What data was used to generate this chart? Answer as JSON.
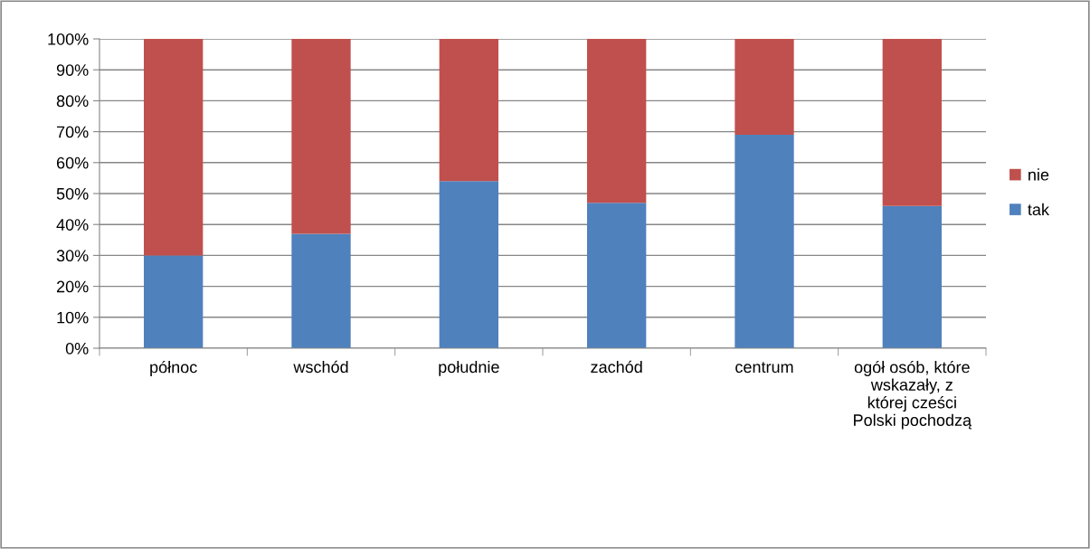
{
  "chart_data": {
    "type": "bar",
    "stacked": true,
    "categories": [
      "północ",
      "wschód",
      "południe",
      "zachód",
      "centrum",
      "ogół osób, które wskazały, z której cześci Polski pochodzą"
    ],
    "series": [
      {
        "name": "tak",
        "color": "#4f81bd",
        "values": [
          30,
          37,
          54,
          47,
          69,
          46
        ]
      },
      {
        "name": "nie",
        "color": "#c0504d",
        "values": [
          70,
          63,
          46,
          53,
          31,
          54
        ]
      }
    ],
    "ylim": [
      0,
      100
    ],
    "yticks": [
      {
        "value": 0,
        "label": "0%"
      },
      {
        "value": 10,
        "label": "10%"
      },
      {
        "value": 20,
        "label": "20%"
      },
      {
        "value": 30,
        "label": "30%"
      },
      {
        "value": 40,
        "label": "40%"
      },
      {
        "value": 50,
        "label": "50%"
      },
      {
        "value": 60,
        "label": "60%"
      },
      {
        "value": 70,
        "label": "70%"
      },
      {
        "value": 80,
        "label": "80%"
      },
      {
        "value": 90,
        "label": "90%"
      },
      {
        "value": 100,
        "label": "100%"
      }
    ],
    "grid": "y",
    "legend": "right"
  }
}
